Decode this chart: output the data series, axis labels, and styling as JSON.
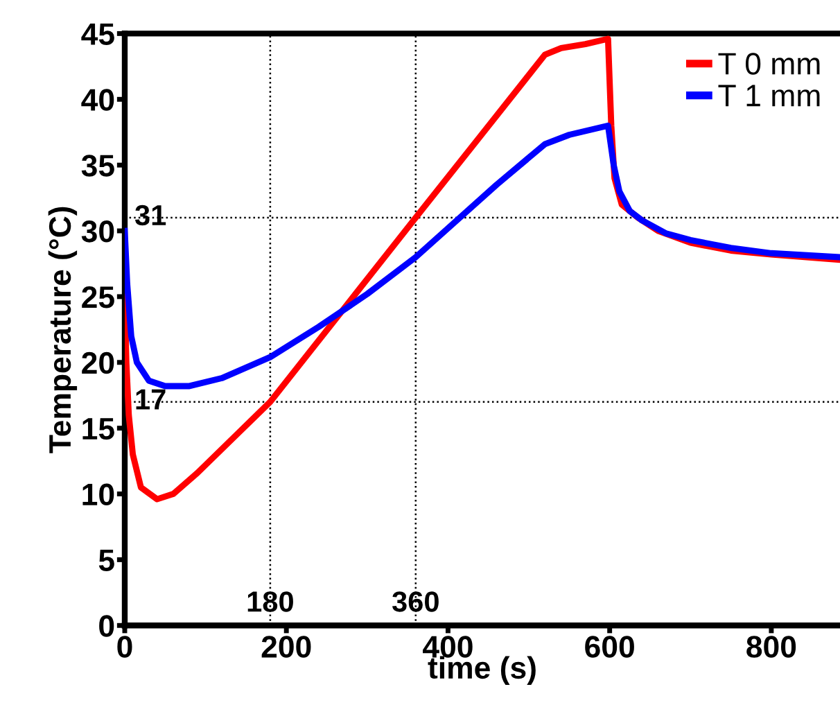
{
  "chart_data": {
    "type": "line",
    "xlabel": "time (s)",
    "ylabel": "Temperature (°C)",
    "xlim": [
      0,
      885
    ],
    "ylim": [
      0,
      45
    ],
    "xticks": [
      0,
      200,
      400,
      600,
      800
    ],
    "yticks": [
      0,
      5,
      10,
      15,
      20,
      25,
      30,
      35,
      40,
      45
    ],
    "grid": false,
    "legend": "top right",
    "marker": "none",
    "line_style": "solid",
    "ref_lines": [
      {
        "axis": "x",
        "value": 180,
        "label": "180",
        "color": "#000000",
        "line_style": "dotted"
      },
      {
        "axis": "x",
        "value": 360,
        "label": "360",
        "color": "#000000",
        "line_style": "dotted"
      },
      {
        "axis": "y",
        "value": 31,
        "label": "31",
        "color": "#000000",
        "line_style": "dotted"
      },
      {
        "axis": "y",
        "value": 17,
        "label": "17",
        "color": "#000000",
        "line_style": "dotted"
      }
    ],
    "series": [
      {
        "name": "T 0 mm",
        "color": "#ff0000",
        "x": [
          0,
          2,
          5,
          10,
          20,
          40,
          60,
          90,
          130,
          180,
          270,
          360,
          440,
          520,
          540,
          570,
          598,
          602,
          606,
          615,
          635,
          660,
          700,
          750,
          800,
          885
        ],
        "values": [
          25,
          20,
          16,
          13,
          10.5,
          9.6,
          10,
          11.6,
          14,
          17,
          24,
          31,
          37.2,
          43.4,
          43.9,
          44.2,
          44.6,
          38,
          34,
          32,
          31,
          30,
          29.1,
          28.5,
          28.2,
          27.8
        ]
      },
      {
        "name": "T 1 mm",
        "color": "#0000ff",
        "x": [
          0,
          3,
          8,
          15,
          30,
          50,
          80,
          120,
          180,
          240,
          300,
          360,
          400,
          460,
          520,
          550,
          598,
          605,
          612,
          625,
          640,
          670,
          700,
          750,
          800,
          885
        ],
        "values": [
          30,
          26,
          22,
          20,
          18.6,
          18.2,
          18.2,
          18.8,
          20.4,
          22.7,
          25.2,
          28,
          30.2,
          33.5,
          36.6,
          37.3,
          38,
          35,
          33,
          31.5,
          30.8,
          29.8,
          29.3,
          28.7,
          28.3,
          28
        ]
      }
    ]
  }
}
